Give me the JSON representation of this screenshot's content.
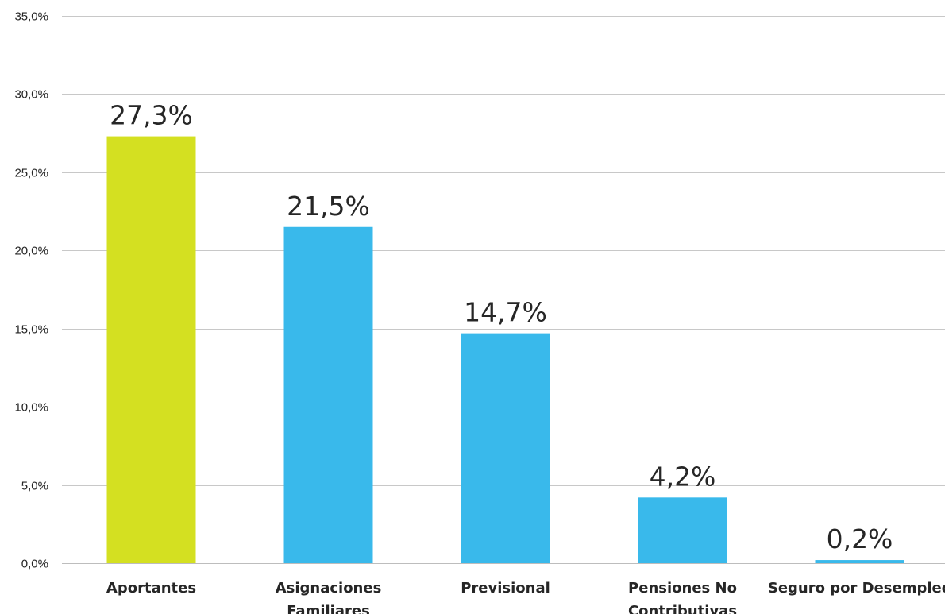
{
  "chart_data": {
    "type": "bar",
    "categories": [
      [
        "Aportantes"
      ],
      [
        "Asignaciones",
        "Familiares"
      ],
      [
        "Previsional"
      ],
      [
        "Pensiones No",
        "Contributivas"
      ],
      [
        "Seguro por Desempleo"
      ]
    ],
    "values": [
      27.3,
      21.5,
      14.7,
      4.2,
      0.2
    ],
    "data_labels": [
      "27,3%",
      "21,5%",
      "14,7%",
      "4,2%",
      "0,2%"
    ],
    "bar_colors": [
      "#d4e021",
      "#39b9eb",
      "#39b9eb",
      "#39b9eb",
      "#39b9eb"
    ],
    "y_ticks": [
      0,
      5,
      10,
      15,
      20,
      25,
      30,
      35
    ],
    "y_tick_labels": [
      "0,0%",
      "5,0%",
      "10,0%",
      "15,0%",
      "20,0%",
      "25,0%",
      "30,0%",
      "35,0%"
    ],
    "ylim": [
      0,
      35
    ],
    "grid": true,
    "legend": false,
    "title": "",
    "xlabel": "",
    "ylabel": ""
  }
}
